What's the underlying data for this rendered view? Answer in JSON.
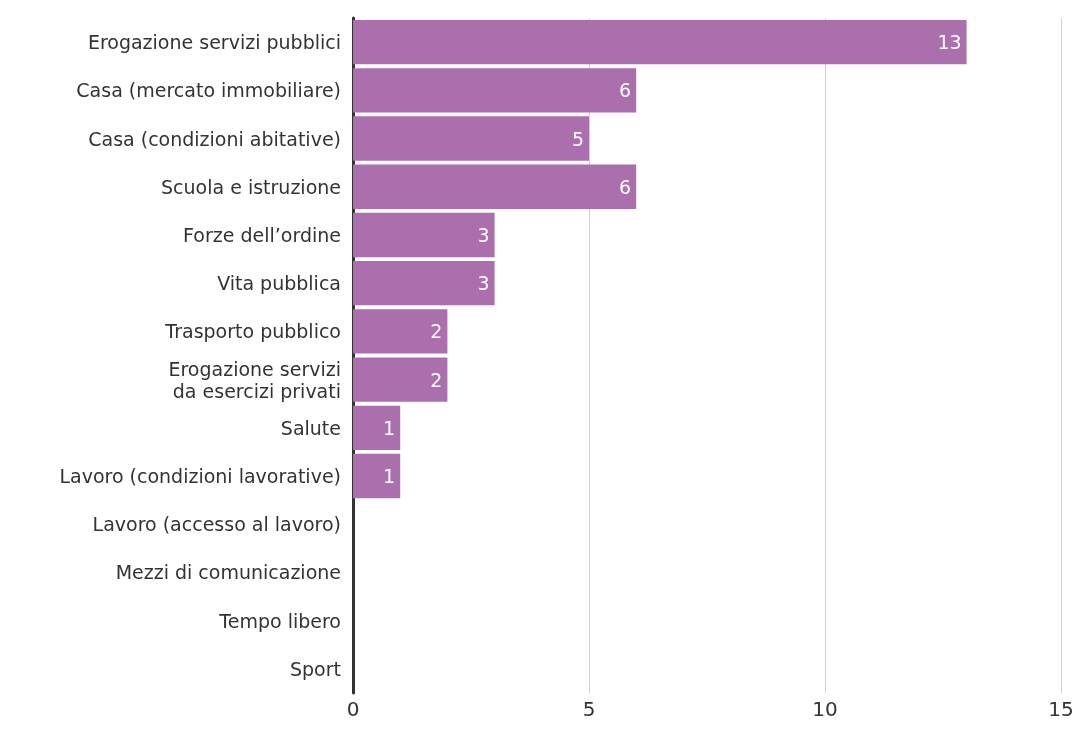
{
  "chart_data": {
    "type": "bar",
    "orientation": "horizontal",
    "categories": [
      "Erogazione servizi pubblici",
      "Casa (mercato immobiliare)",
      "Casa (condizioni abitative)",
      "Scuola e istruzione",
      "Forze dell’ordine",
      "Vita pubblica",
      "Trasporto pubblico",
      "Erogazione servizi\nda esercizi privati",
      "Salute",
      "Lavoro (condizioni lavorative)",
      "Lavoro (accesso al lavoro)",
      "Mezzi di comunicazione",
      "Tempo libero",
      "Sport"
    ],
    "values": [
      13,
      6,
      5,
      6,
      3,
      3,
      2,
      2,
      1,
      1,
      0,
      0,
      0,
      0
    ],
    "value_labels": [
      "13",
      "6",
      "5",
      "6",
      "3",
      "3",
      "2",
      "2",
      "1",
      "1",
      null,
      null,
      null,
      null
    ],
    "color": "#ab6fad",
    "xlim": [
      0,
      15
    ],
    "xticks": [
      0,
      5,
      10,
      15
    ],
    "grid": "x"
  }
}
